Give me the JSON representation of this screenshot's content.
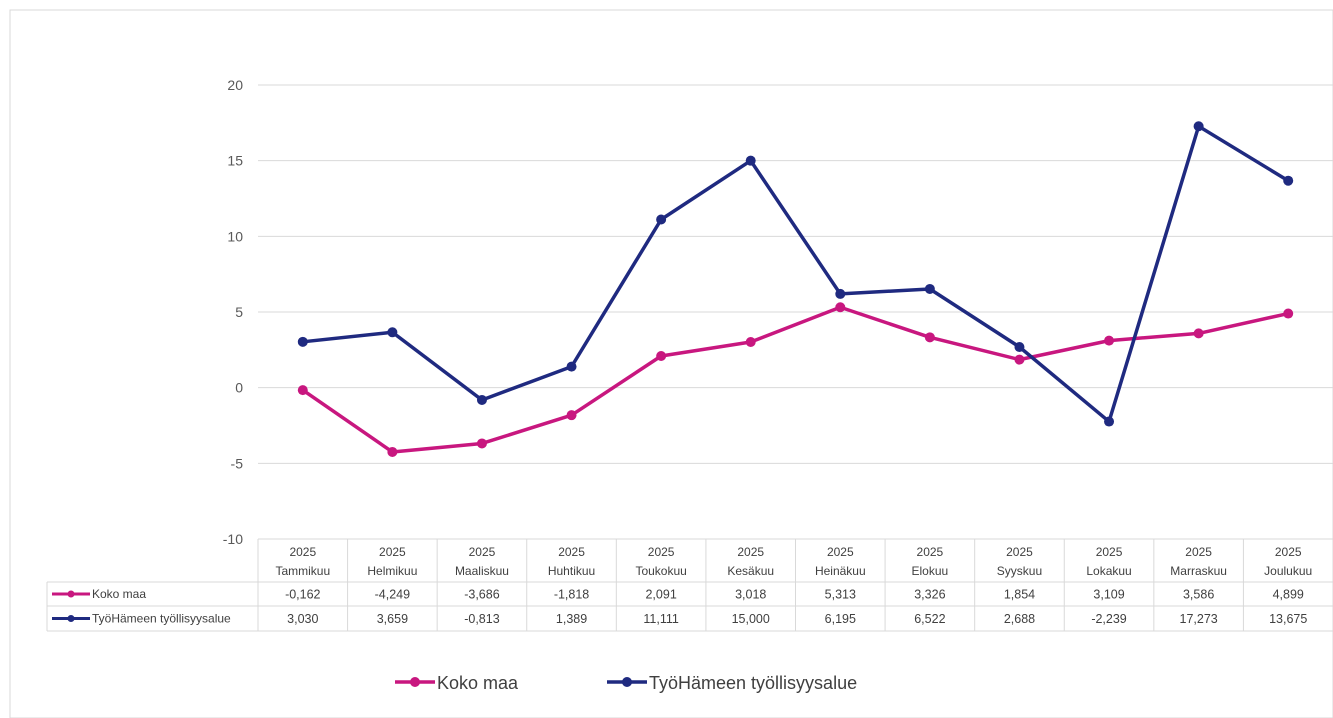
{
  "chart_data": {
    "type": "line",
    "title": "",
    "xlabel": "",
    "ylabel": "",
    "ylim": [
      -10,
      20
    ],
    "yticks": [
      "20",
      "15",
      "10",
      "5",
      "0",
      "-5",
      "-10"
    ],
    "ytick_values": [
      20,
      15,
      10,
      5,
      0,
      -5,
      -10
    ],
    "categories": [
      [
        "2025",
        "Tammikuu"
      ],
      [
        "2025",
        "Helmikuu"
      ],
      [
        "2025",
        "Maaliskuu"
      ],
      [
        "2025",
        "Huhtikuu"
      ],
      [
        "2025",
        "Toukokuu"
      ],
      [
        "2025",
        "Kesäkuu"
      ],
      [
        "2025",
        "Heinäkuu"
      ],
      [
        "2025",
        "Elokuu"
      ],
      [
        "2025",
        "Syyskuu"
      ],
      [
        "2025",
        "Lokakuu"
      ],
      [
        "2025",
        "Marraskuu"
      ],
      [
        "2025",
        "Joulukuu"
      ]
    ],
    "grid": true,
    "legend_position": "bottom",
    "data_table": true,
    "series": [
      {
        "name": "Koko maa",
        "color": "#c8177f",
        "values": [
          -0.162,
          -4.249,
          -3.686,
          -1.818,
          2.091,
          3.018,
          5.313,
          3.326,
          1.854,
          3.109,
          3.586,
          4.899
        ],
        "labels": [
          "-0,162",
          "-4,249",
          "-3,686",
          "-1,818",
          "2,091",
          "3,018",
          "5,313",
          "3,326",
          "1,854",
          "3,109",
          "3,586",
          "4,899"
        ]
      },
      {
        "name": "TyöHämeen työllisyysalue",
        "color": "#1f2a80",
        "values": [
          3.03,
          3.659,
          -0.813,
          1.389,
          11.111,
          15.0,
          6.195,
          6.522,
          2.688,
          -2.239,
          17.273,
          13.675
        ],
        "labels": [
          "3,030",
          "3,659",
          "-0,813",
          "1,389",
          "11,111",
          "15,000",
          "6,195",
          "6,522",
          "2,688",
          "-2,239",
          "17,273",
          "13,675"
        ]
      }
    ]
  }
}
